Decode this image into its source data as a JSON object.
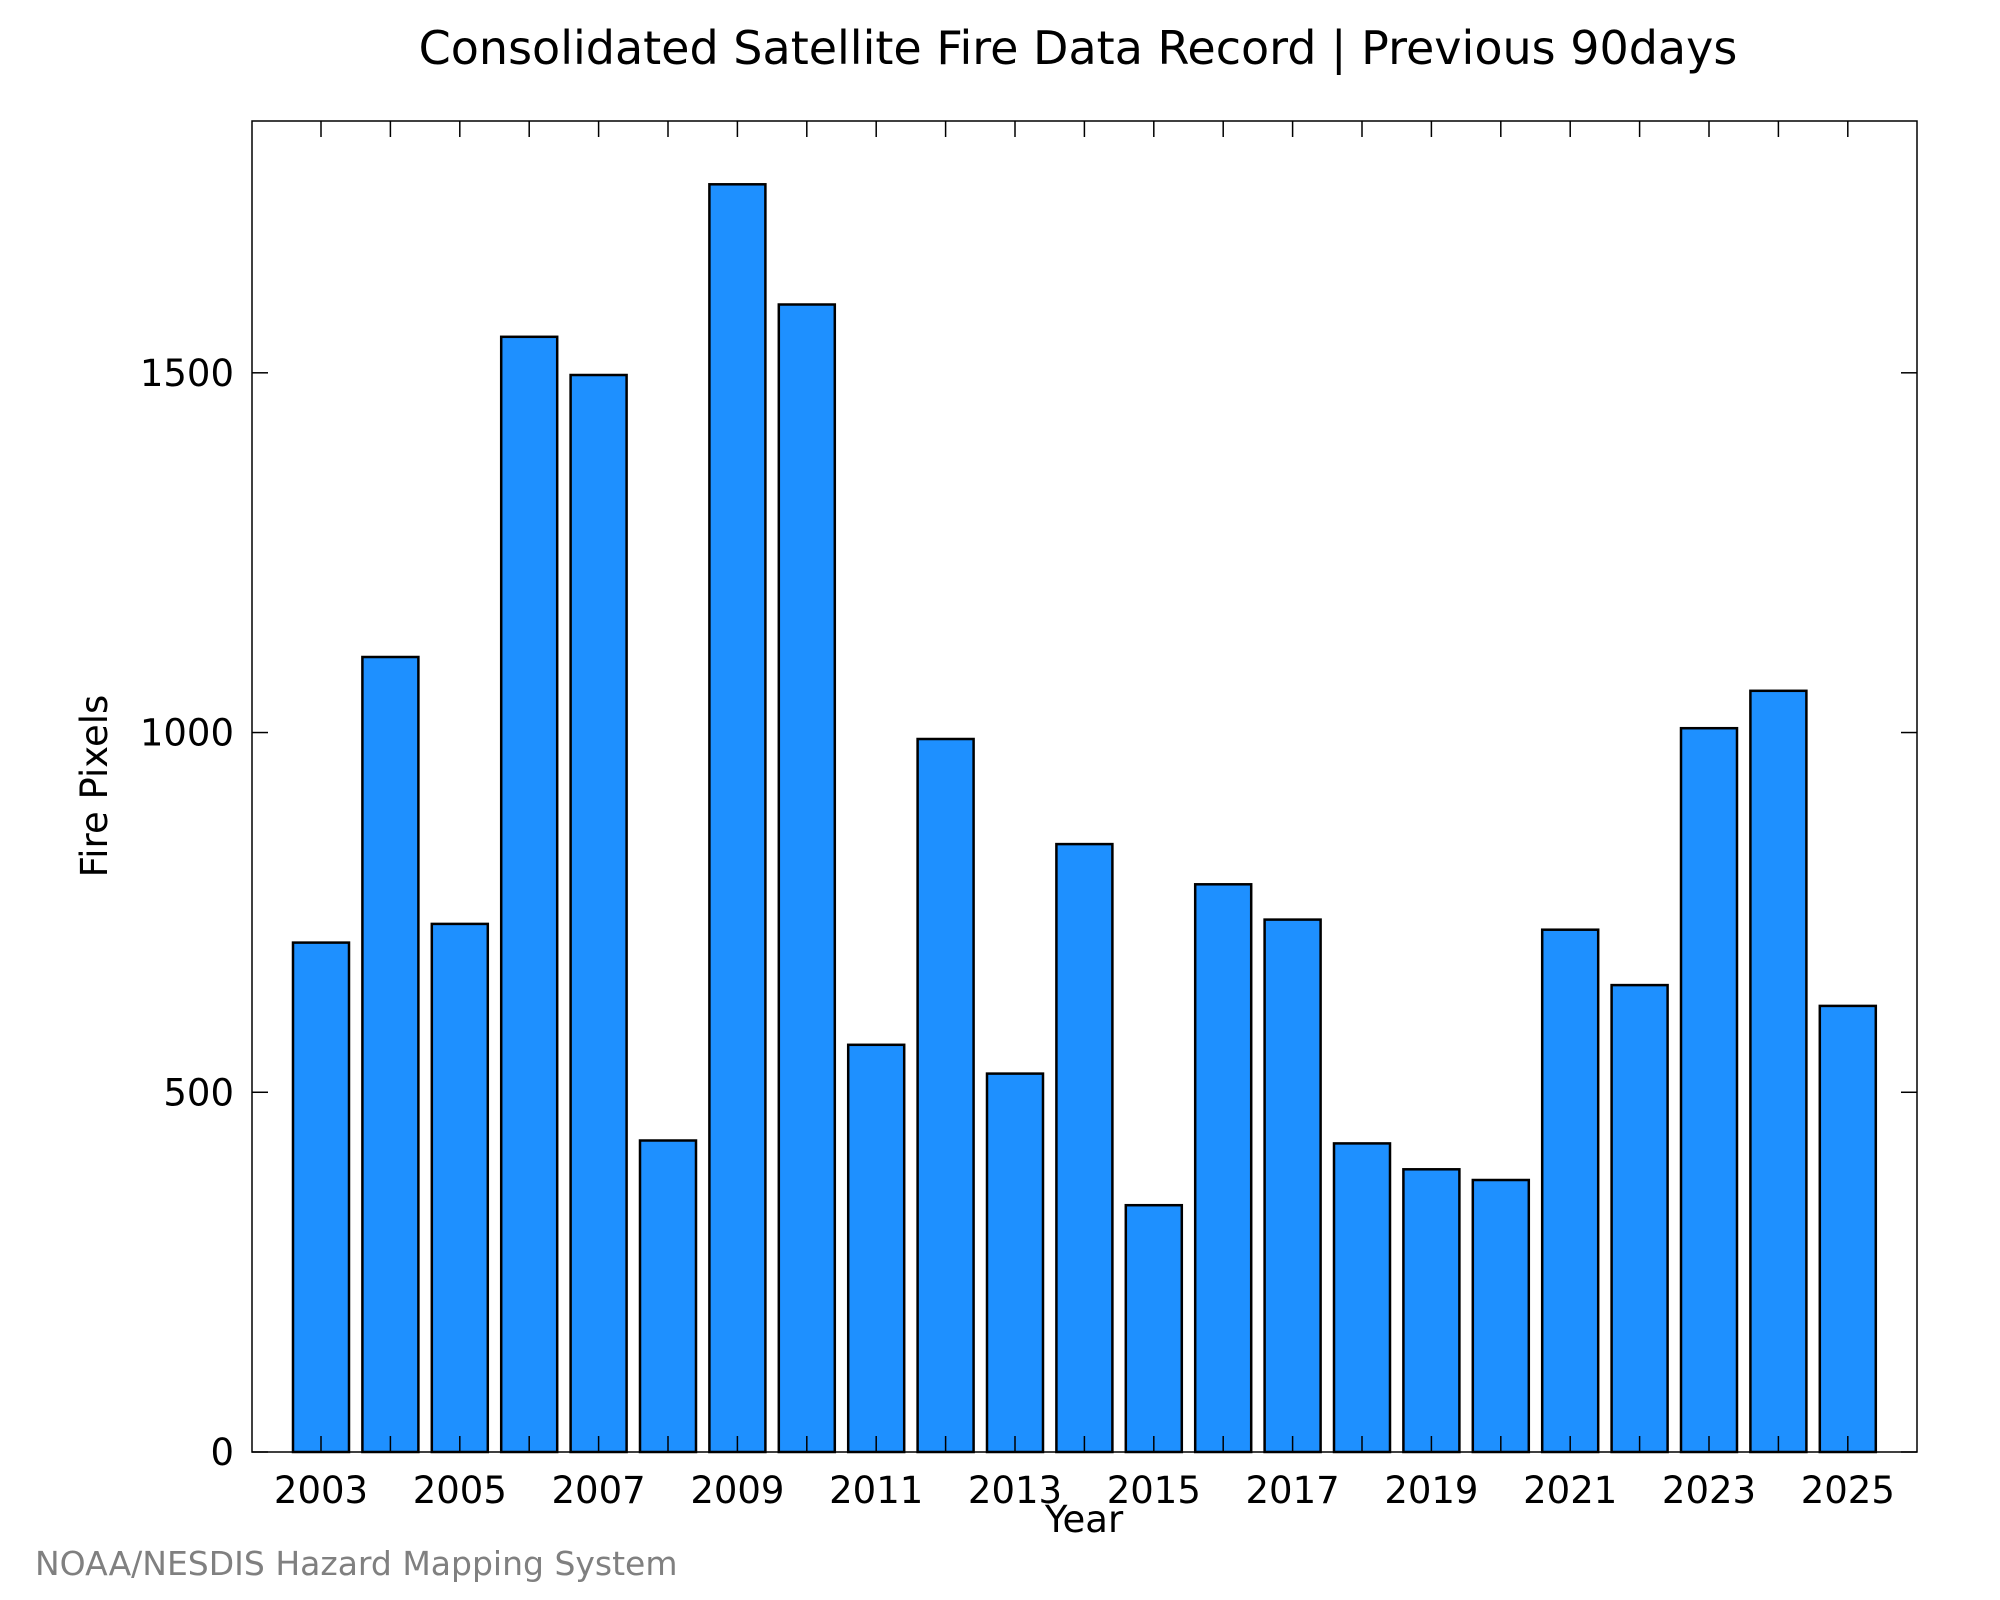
{
  "chart_data": {
    "type": "bar",
    "title": "Consolidated Satellite Fire Data Record | Previous 90days",
    "xlabel": "Year",
    "ylabel": "Fire Pixels",
    "categories": [
      "2003",
      "2004",
      "2005",
      "2006",
      "2007",
      "2008",
      "2009",
      "2010",
      "2011",
      "2012",
      "2013",
      "2014",
      "2015",
      "2016",
      "2017",
      "2018",
      "2019",
      "2020",
      "2021",
      "2022",
      "2023",
      "2024",
      "2025"
    ],
    "x_tick_labels": [
      "2003",
      "2005",
      "2007",
      "2009",
      "2011",
      "2013",
      "2015",
      "2017",
      "2019",
      "2021",
      "2023",
      "2025"
    ],
    "values": [
      708,
      1105,
      734,
      1550,
      1497,
      433,
      1762,
      1595,
      566,
      991,
      526,
      845,
      343,
      789,
      740,
      429,
      393,
      378,
      726,
      649,
      1006,
      1058,
      620
    ],
    "y_ticks": [
      0,
      500,
      1000,
      1500
    ],
    "ylim": [
      0,
      1850
    ],
    "bar_color": "#1e90ff",
    "grid": false
  },
  "credit": "NOAA/NESDIS Hazard Mapping System"
}
